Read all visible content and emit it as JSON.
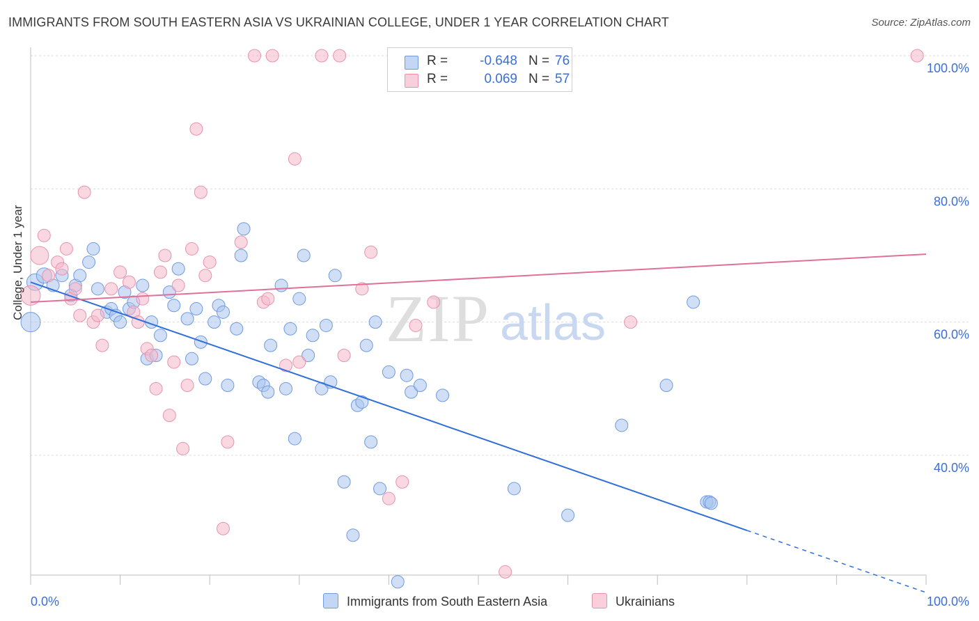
{
  "title": "IMMIGRANTS FROM SOUTH EASTERN ASIA VS UKRAINIAN COLLEGE, UNDER 1 YEAR CORRELATION CHART",
  "source": "Source: ZipAtlas.com",
  "watermark": {
    "zip": "ZIP",
    "atlas": "atlas"
  },
  "colors": {
    "blue_fill": "#a9c4ee",
    "blue_stroke": "#6f9ae0",
    "blue_line": "#2f6fd6",
    "pink_fill": "#f5b8cb",
    "pink_stroke": "#e892ad",
    "pink_line": "#e0709a",
    "tick_label": "#3a6fd8",
    "grid": "#dcdcdc"
  },
  "legend": {
    "rows": [
      {
        "r_label": "R =",
        "r_value": "-0.648",
        "n_label": "N =",
        "n_value": "76"
      },
      {
        "r_label": "R =",
        "r_value": "0.069",
        "n_label": "N =",
        "n_value": "57"
      }
    ]
  },
  "bottom_legend": [
    "Immigrants from South Eastern Asia",
    "Ukrainians"
  ],
  "chart_data": {
    "type": "scatter",
    "title": "IMMIGRANTS FROM SOUTH EASTERN ASIA VS UKRAINIAN COLLEGE, UNDER 1 YEAR CORRELATION CHART",
    "xlabel": "",
    "ylabel": "College, Under 1 year",
    "xlim": [
      0,
      100
    ],
    "ylim": [
      20,
      102
    ],
    "x_tick_labels": [
      "0.0%",
      "100.0%"
    ],
    "y_ticks": [
      40,
      60,
      80,
      100
    ],
    "y_tick_labels": [
      "40.0%",
      "60.0%",
      "80.0%",
      "100.0%"
    ],
    "grid": true,
    "legend_position": "top-center",
    "series": [
      {
        "name": "Immigrants from South Eastern Asia",
        "color": "#a9c4ee",
        "trend": {
          "x": [
            0,
            80,
            100
          ],
          "y": [
            66.0,
            28.7,
            19.4
          ],
          "solid_until_x": 80
        },
        "points": [
          [
            0,
            60,
            14
          ],
          [
            0.5,
            66,
            12
          ],
          [
            1.5,
            67,
            11
          ],
          [
            2.5,
            65.5,
            9
          ],
          [
            3.5,
            67,
            9
          ],
          [
            4.5,
            64,
            9
          ],
          [
            5,
            65.5,
            9
          ],
          [
            5.5,
            67,
            9
          ],
          [
            6.5,
            69,
            9
          ],
          [
            7,
            71,
            9
          ],
          [
            7.5,
            65,
            9
          ],
          [
            8.5,
            61.5,
            9
          ],
          [
            9,
            62,
            9
          ],
          [
            9.5,
            61,
            9
          ],
          [
            10,
            60,
            9
          ],
          [
            10.5,
            64.5,
            9
          ],
          [
            11,
            62,
            9
          ],
          [
            11.5,
            63,
            9
          ],
          [
            12.5,
            65.5,
            9
          ],
          [
            13,
            54.5,
            9
          ],
          [
            13.5,
            60,
            9
          ],
          [
            14,
            55,
            9
          ],
          [
            14.5,
            58,
            9
          ],
          [
            15.5,
            64.5,
            9
          ],
          [
            16,
            62.5,
            9
          ],
          [
            16.5,
            68,
            9
          ],
          [
            17.5,
            60.5,
            9
          ],
          [
            18,
            54.5,
            9
          ],
          [
            18.5,
            62,
            9
          ],
          [
            19,
            57,
            9
          ],
          [
            19.5,
            51.5,
            9
          ],
          [
            20.5,
            60,
            9
          ],
          [
            21,
            62.5,
            9
          ],
          [
            21.5,
            61.5,
            9
          ],
          [
            22,
            50.5,
            9
          ],
          [
            23,
            59,
            9
          ],
          [
            23.5,
            70,
            9
          ],
          [
            23.8,
            74,
            9
          ],
          [
            25.5,
            51,
            9
          ],
          [
            26,
            50.5,
            9
          ],
          [
            26.5,
            49.5,
            9
          ],
          [
            26.8,
            56.5,
            9
          ],
          [
            28,
            65.5,
            9
          ],
          [
            28.5,
            50,
            9
          ],
          [
            29,
            59,
            9
          ],
          [
            29.5,
            42.5,
            9
          ],
          [
            30,
            63.5,
            9
          ],
          [
            30.5,
            70,
            9
          ],
          [
            31,
            55,
            9
          ],
          [
            31.5,
            58,
            9
          ],
          [
            32.5,
            50,
            9
          ],
          [
            33,
            59.5,
            9
          ],
          [
            33.5,
            51,
            9
          ],
          [
            34,
            67,
            9
          ],
          [
            35,
            36,
            9
          ],
          [
            36,
            28,
            9
          ],
          [
            36.5,
            47.5,
            9
          ],
          [
            37,
            48,
            9
          ],
          [
            37.5,
            56.5,
            9
          ],
          [
            38,
            42,
            9
          ],
          [
            38.5,
            60,
            9
          ],
          [
            39,
            35,
            9
          ],
          [
            40,
            52.5,
            9
          ],
          [
            41,
            21,
            9
          ],
          [
            42,
            52,
            9
          ],
          [
            42.5,
            49.5,
            9
          ],
          [
            43.5,
            50.5,
            9
          ],
          [
            46,
            49,
            9
          ],
          [
            54,
            35,
            9
          ],
          [
            60,
            31,
            9
          ],
          [
            66,
            44.5,
            9
          ],
          [
            71,
            50.5,
            9
          ],
          [
            74,
            63,
            9
          ],
          [
            75.5,
            33,
            9
          ],
          [
            75.8,
            33,
            9
          ],
          [
            76,
            32.8,
            9
          ]
        ]
      },
      {
        "name": "Ukrainians",
        "color": "#f5b8cb",
        "trend": {
          "x": [
            0,
            100
          ],
          "y": [
            63.0,
            70.2
          ]
        },
        "points": [
          [
            0,
            64,
            14
          ],
          [
            1,
            70,
            13
          ],
          [
            1.5,
            73,
            9
          ],
          [
            2,
            67,
            9
          ],
          [
            3,
            69,
            9
          ],
          [
            3.5,
            68,
            9
          ],
          [
            4,
            71,
            9
          ],
          [
            4.5,
            63.5,
            9
          ],
          [
            5,
            65,
            9
          ],
          [
            5.5,
            61,
            9
          ],
          [
            6,
            79.5,
            9
          ],
          [
            7,
            60,
            9
          ],
          [
            7.5,
            61,
            9
          ],
          [
            8,
            56.5,
            9
          ],
          [
            9,
            65,
            9
          ],
          [
            10,
            67.5,
            9
          ],
          [
            11,
            66,
            9
          ],
          [
            11.5,
            61.5,
            9
          ],
          [
            12,
            60,
            9
          ],
          [
            12.5,
            63.5,
            9
          ],
          [
            13,
            56,
            9
          ],
          [
            13.5,
            55,
            9
          ],
          [
            14,
            50,
            9
          ],
          [
            14.5,
            67.5,
            9
          ],
          [
            15,
            70,
            9
          ],
          [
            15.5,
            46,
            9
          ],
          [
            16,
            54,
            9
          ],
          [
            16.5,
            65.5,
            9
          ],
          [
            17,
            41,
            9
          ],
          [
            17.5,
            50.5,
            9
          ],
          [
            18,
            71,
            9
          ],
          [
            18.5,
            89,
            9
          ],
          [
            19,
            79.5,
            9
          ],
          [
            19.5,
            67,
            9
          ],
          [
            20,
            69,
            9
          ],
          [
            21.5,
            29,
            9
          ],
          [
            22,
            42,
            9
          ],
          [
            23.5,
            72,
            9
          ],
          [
            25,
            100,
            9
          ],
          [
            26,
            63,
            9
          ],
          [
            26.5,
            63.5,
            9
          ],
          [
            27,
            100,
            9
          ],
          [
            28.5,
            53.5,
            9
          ],
          [
            29.5,
            84.5,
            9
          ],
          [
            30,
            54,
            9
          ],
          [
            32.5,
            100,
            9
          ],
          [
            34.5,
            100,
            9
          ],
          [
            35,
            55,
            9
          ],
          [
            37,
            65,
            9
          ],
          [
            38,
            70.5,
            9
          ],
          [
            40,
            33.5,
            9
          ],
          [
            41.5,
            36,
            9
          ],
          [
            43,
            59.5,
            9
          ],
          [
            45,
            63,
            9
          ],
          [
            53,
            22.5,
            9
          ],
          [
            67,
            60,
            9
          ],
          [
            99,
            100,
            9
          ]
        ]
      }
    ]
  }
}
